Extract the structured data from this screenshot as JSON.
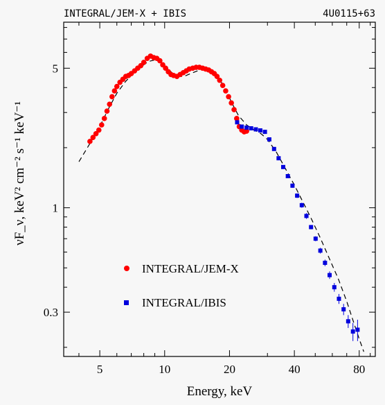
{
  "header": {
    "left": "INTEGRAL/JEM-X + IBIS",
    "right": "4U0115+63"
  },
  "colors": {
    "jemx": "#ff0000",
    "ibis": "#0000dd",
    "model": "#000000",
    "frame": "#000000"
  },
  "chart_data": {
    "type": "scatter",
    "title": "INTEGRAL/JEM-X + IBIS",
    "xlabel": "Energy, keV",
    "ylabel": "νF_ν, keV² cm⁻² s⁻¹ keV⁻¹",
    "x_scale": "log",
    "y_scale": "log",
    "xlim": [
      3.4,
      95
    ],
    "ylim": [
      0.18,
      8.5
    ],
    "x_ticks": [
      5,
      10,
      20,
      40,
      80
    ],
    "x_tick_labels": [
      "5",
      "10",
      "20",
      "40",
      "80"
    ],
    "y_ticks": [
      0.3,
      1,
      5
    ],
    "y_tick_labels": [
      "0.3",
      "1",
      "5"
    ],
    "legend": {
      "placement": "lower-left",
      "items": [
        "INTEGRAL/JEM-X",
        "INTEGRAL/IBIS"
      ]
    },
    "series": [
      {
        "name": "INTEGRAL/JEM-X",
        "marker": "circle",
        "x": [
          4.5,
          4.65,
          4.8,
          4.95,
          5.1,
          5.25,
          5.4,
          5.55,
          5.7,
          5.85,
          6.0,
          6.2,
          6.4,
          6.6,
          6.8,
          7.0,
          7.25,
          7.5,
          7.75,
          8.0,
          8.3,
          8.6,
          8.9,
          9.2,
          9.5,
          9.8,
          10.1,
          10.4,
          10.7,
          11.0,
          11.4,
          11.8,
          12.2,
          12.6,
          13.0,
          13.5,
          14.0,
          14.5,
          15.0,
          15.5,
          16.0,
          16.5,
          17.0,
          17.5,
          18.0,
          18.6,
          19.2,
          19.8,
          20.4,
          21.0,
          21.6,
          22.2,
          22.8,
          23.4,
          24.0
        ],
        "y": [
          2.15,
          2.25,
          2.35,
          2.45,
          2.6,
          2.8,
          3.05,
          3.3,
          3.6,
          3.85,
          4.05,
          4.25,
          4.4,
          4.55,
          4.6,
          4.7,
          4.85,
          5.0,
          5.15,
          5.35,
          5.6,
          5.75,
          5.65,
          5.6,
          5.45,
          5.2,
          5.0,
          4.8,
          4.65,
          4.6,
          4.55,
          4.65,
          4.75,
          4.85,
          4.95,
          5.0,
          5.05,
          5.05,
          5.0,
          4.95,
          4.9,
          4.8,
          4.7,
          4.55,
          4.35,
          4.1,
          3.85,
          3.6,
          3.35,
          3.1,
          2.8,
          2.55,
          2.45,
          2.4,
          2.42
        ]
      },
      {
        "name": "INTEGRAL/IBIS",
        "marker": "square",
        "x": [
          21.7,
          22.8,
          24.0,
          25.2,
          26.5,
          27.8,
          29.2,
          30.6,
          32.2,
          33.8,
          35.5,
          37.3,
          39.2,
          41.2,
          43.3,
          45.5,
          47.8,
          50.2,
          52.8,
          55.5,
          58.3,
          61.3,
          64.4,
          67.7,
          71.1,
          74.8,
          78.6
        ],
        "y": [
          2.68,
          2.55,
          2.52,
          2.5,
          2.47,
          2.44,
          2.4,
          2.2,
          1.97,
          1.77,
          1.6,
          1.44,
          1.29,
          1.15,
          1.03,
          0.91,
          0.8,
          0.7,
          0.61,
          0.53,
          0.46,
          0.4,
          0.35,
          0.31,
          0.27,
          0.24,
          0.245
        ],
        "y_err": [
          0.03,
          0.03,
          0.03,
          0.03,
          0.03,
          0.03,
          0.03,
          0.03,
          0.03,
          0.03,
          0.03,
          0.03,
          0.03,
          0.03,
          0.03,
          0.03,
          0.02,
          0.02,
          0.02,
          0.02,
          0.02,
          0.02,
          0.02,
          0.02,
          0.02,
          0.025,
          0.03
        ]
      }
    ],
    "model_curve": {
      "style": "dashed",
      "x": [
        4.0,
        4.5,
        5.0,
        5.5,
        6.0,
        6.6,
        7.2,
        7.8,
        8.4,
        9.0,
        9.6,
        10.2,
        10.8,
        11.5,
        12.3,
        13.2,
        14.2,
        15.3,
        16.4,
        17.6,
        19.0,
        20.5,
        22.0,
        24.0,
        26.0,
        28.0,
        30.0,
        33.0,
        36.0,
        40.0,
        44.0,
        48.0,
        53.0,
        58.0,
        64.0,
        70.0,
        76.0,
        80.0,
        84.0
      ],
      "y": [
        1.7,
        2.1,
        2.55,
        3.15,
        3.75,
        4.3,
        4.75,
        5.1,
        5.4,
        5.5,
        5.35,
        5.05,
        4.75,
        4.55,
        4.55,
        4.7,
        4.85,
        4.95,
        4.85,
        4.55,
        4.0,
        3.35,
        2.9,
        2.6,
        2.45,
        2.35,
        2.2,
        1.9,
        1.6,
        1.3,
        1.06,
        0.88,
        0.7,
        0.56,
        0.44,
        0.34,
        0.26,
        0.22,
        0.19
      ]
    }
  }
}
